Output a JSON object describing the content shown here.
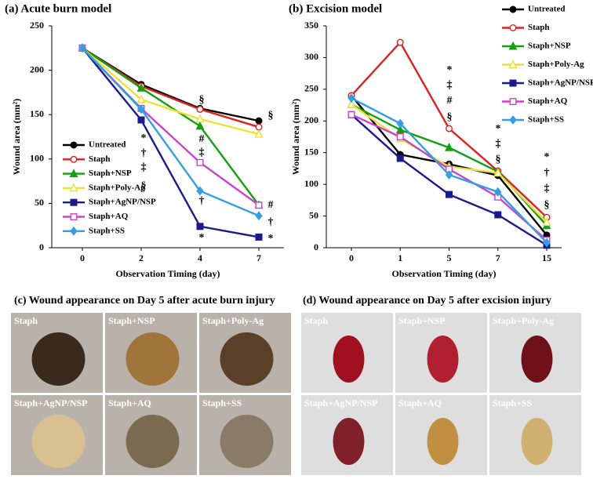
{
  "chart_data": [
    {
      "type": "line",
      "title": "(a) Acute burn model",
      "x_label": "Observation Timing (day)",
      "y_label": "Wound area (mm²)",
      "categories": [
        "0",
        "2",
        "4",
        "7"
      ],
      "ylim": [
        0,
        250
      ],
      "yticks": [
        0,
        50,
        100,
        150,
        200,
        250
      ],
      "series": [
        {
          "name": "Untreated",
          "color": "#000000",
          "marker": "circle",
          "filled": true,
          "values": [
            225,
            184,
            157,
            143
          ]
        },
        {
          "name": "Staph",
          "color": "#e02020",
          "marker": "circle",
          "filled": false,
          "values": [
            225,
            182,
            156,
            136
          ]
        },
        {
          "name": "Staph+NSP",
          "color": "#10a010",
          "marker": "triangle",
          "filled": true,
          "values": [
            225,
            180,
            137,
            48
          ]
        },
        {
          "name": "Staph+Poly-Ag",
          "color": "#f0e030",
          "marker": "triangle",
          "filled": false,
          "values": [
            225,
            167,
            145,
            128
          ]
        },
        {
          "name": "Staph+AgNP/NSP",
          "color": "#1a1a90",
          "marker": "square",
          "filled": true,
          "values": [
            225,
            144,
            24,
            12
          ]
        },
        {
          "name": "Staph+AQ",
          "color": "#d040d0",
          "marker": "square",
          "filled": false,
          "values": [
            225,
            157,
            96,
            48
          ]
        },
        {
          "name": "Staph+SS",
          "color": "#30a0e0",
          "marker": "diamond",
          "filled": true,
          "values": [
            225,
            156,
            64,
            36
          ]
        }
      ],
      "annotations": [
        "§",
        "§",
        "*",
        "†",
        "‡",
        "§",
        "#",
        "‡",
        "†",
        "*",
        "#",
        "†",
        "*"
      ]
    },
    {
      "type": "line",
      "title": "(b) Excision model",
      "x_label": "Observation Timing (day)",
      "y_label": "Wound area (mm²)",
      "categories": [
        "0",
        "1",
        "5",
        "7",
        "15"
      ],
      "ylim": [
        0,
        350
      ],
      "yticks": [
        0,
        50,
        100,
        150,
        200,
        250,
        300,
        350
      ],
      "series": [
        {
          "name": "Untreated",
          "color": "#000000",
          "marker": "circle",
          "filled": true,
          "values": [
            240,
            147,
            132,
            114,
            20
          ]
        },
        {
          "name": "Staph",
          "color": "#e02020",
          "marker": "circle",
          "filled": false,
          "values": [
            240,
            324,
            188,
            121,
            48
          ]
        },
        {
          "name": "Staph+NSP",
          "color": "#10a010",
          "marker": "triangle",
          "filled": true,
          "values": [
            226,
            186,
            158,
            120,
            35
          ]
        },
        {
          "name": "Staph+Poly-Ag",
          "color": "#f0e030",
          "marker": "triangle",
          "filled": false,
          "values": [
            226,
            172,
            128,
            118,
            40
          ]
        },
        {
          "name": "Staph+AgNP/NSP",
          "color": "#1a1a90",
          "marker": "square",
          "filled": true,
          "values": [
            210,
            141,
            84,
            52,
            4
          ]
        },
        {
          "name": "Staph+AQ",
          "color": "#d040d0",
          "marker": "square",
          "filled": false,
          "values": [
            210,
            175,
            124,
            80,
            12
          ]
        },
        {
          "name": "Staph+SS",
          "color": "#30a0e0",
          "marker": "diamond",
          "filled": true,
          "values": [
            236,
            196,
            115,
            88,
            8
          ]
        }
      ],
      "annotations": [
        "*",
        "‡",
        "#",
        "§",
        "*",
        "‡",
        "§",
        "*",
        "†",
        "‡",
        "§"
      ]
    }
  ],
  "photo_panels": [
    {
      "title": "(c) Wound appearance on Day 5 after acute burn injury",
      "labels": [
        "Staph",
        "Staph+NSP",
        "Staph+Poly-Ag",
        "Staph+AgNP/NSP",
        "Staph+AQ",
        "Staph+SS"
      ]
    },
    {
      "title": "(d) Wound appearance on Day 5 after excision injury",
      "labels": [
        "Staph",
        "Staph+NSP",
        "Staph+Poly-Ag",
        "Staph+AgNP/NSP",
        "Staph+AQ",
        "Staph+SS"
      ]
    }
  ]
}
